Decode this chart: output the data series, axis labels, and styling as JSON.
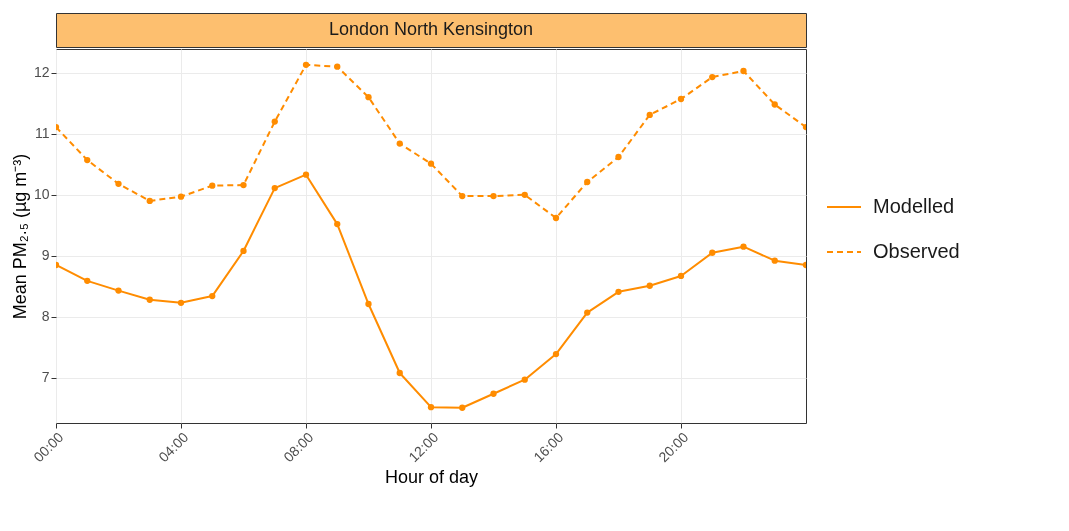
{
  "chart_data": {
    "type": "line",
    "title": "London North Kensington",
    "xlabel": "Hour of day",
    "ylabel": "Mean PM₂.₅ (µg m⁻³)",
    "x": [
      0,
      1,
      2,
      3,
      4,
      5,
      6,
      7,
      8,
      9,
      10,
      11,
      12,
      13,
      14,
      15,
      16,
      17,
      18,
      19,
      20,
      21,
      22,
      23,
      24
    ],
    "series": [
      {
        "name": "Modelled",
        "color": "#ff8c00",
        "line_style": "solid",
        "values": [
          8.85,
          8.59,
          8.43,
          8.28,
          8.23,
          8.34,
          9.08,
          10.11,
          10.33,
          9.52,
          8.21,
          7.08,
          6.52,
          6.51,
          6.74,
          6.97,
          7.39,
          8.07,
          8.41,
          8.51,
          8.67,
          9.05,
          9.15,
          8.92,
          8.85
        ]
      },
      {
        "name": "Observed",
        "color": "#ff8c00",
        "line_style": "dashed",
        "values": [
          11.11,
          10.57,
          10.18,
          9.9,
          9.97,
          10.15,
          10.16,
          11.2,
          12.13,
          12.1,
          11.6,
          10.84,
          10.51,
          9.98,
          9.98,
          10.0,
          9.62,
          10.21,
          10.62,
          11.31,
          11.57,
          11.93,
          12.03,
          11.48,
          11.11
        ]
      }
    ],
    "xlim": [
      0,
      24
    ],
    "xticks": [
      {
        "value": 0,
        "label": "00:00"
      },
      {
        "value": 4,
        "label": "04:00"
      },
      {
        "value": 8,
        "label": "08:00"
      },
      {
        "value": 12,
        "label": "12:00"
      },
      {
        "value": 16,
        "label": "16:00"
      },
      {
        "value": 20,
        "label": "20:00"
      }
    ],
    "ylim": [
      6.26,
      12.39
    ],
    "yticks": [
      7,
      8,
      9,
      10,
      11,
      12
    ],
    "grid": true,
    "legend": "right",
    "marker": "circle"
  }
}
